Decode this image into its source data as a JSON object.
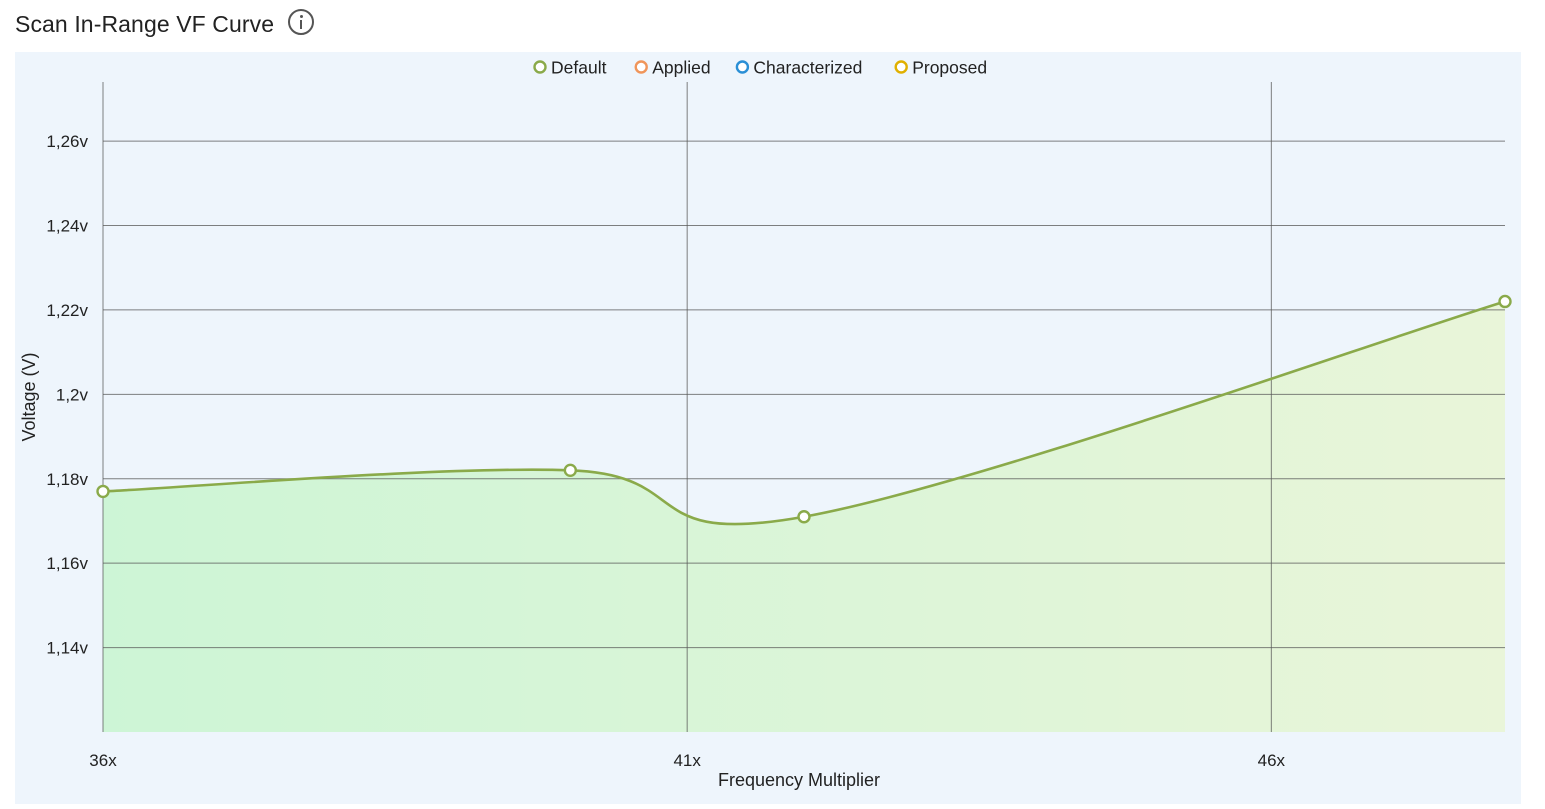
{
  "header": {
    "title": "Scan In-Range VF Curve",
    "info_icon": "info-icon"
  },
  "colors": {
    "panel_bg": "#eef5fc",
    "grid": "#555555",
    "default": "#8aaa4a",
    "applied": "#f0955a",
    "characterized": "#2a8fd6",
    "proposed": "#e0b000",
    "fill_start": "#cdf5d6",
    "fill_end": "#e9f5d9"
  },
  "chart_data": {
    "type": "line",
    "xlabel": "Frequency Multiplier",
    "ylabel": "Voltage (V)",
    "xlim": [
      36,
      48
    ],
    "ylim": [
      1.12,
      1.274
    ],
    "x_ticks": [
      36,
      41,
      46
    ],
    "x_tick_labels": [
      "36x",
      "41x",
      "46x"
    ],
    "y_ticks": [
      1.14,
      1.16,
      1.18,
      1.2,
      1.22,
      1.24,
      1.26
    ],
    "y_tick_labels": [
      "1,14v",
      "1,16v",
      "1,18v",
      "1,2v",
      "1,22v",
      "1,24v",
      "1,26v"
    ],
    "grid": true,
    "legend_position": "top-center",
    "legend": [
      {
        "name": "Default",
        "color": "#8aaa4a"
      },
      {
        "name": "Applied",
        "color": "#f0955a"
      },
      {
        "name": "Characterized",
        "color": "#2a8fd6"
      },
      {
        "name": "Proposed",
        "color": "#e0b000"
      }
    ],
    "series": [
      {
        "name": "Default",
        "color": "#8aaa4a",
        "x": [
          36,
          40,
          42,
          48
        ],
        "y": [
          1.177,
          1.182,
          1.171,
          1.222
        ]
      }
    ]
  }
}
